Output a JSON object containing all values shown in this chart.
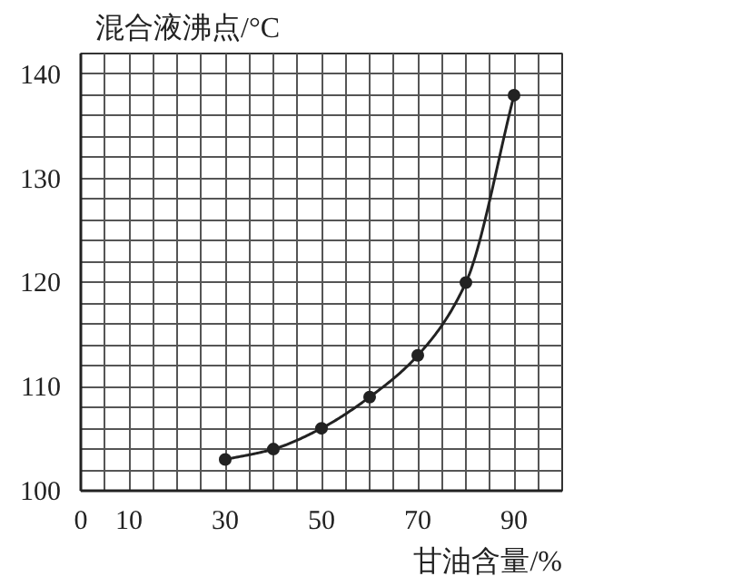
{
  "chart_data": {
    "type": "line",
    "xlabel": "甘油含量/%",
    "ylabel": "混合液沸点/°C",
    "x": [
      30,
      40,
      50,
      60,
      70,
      80,
      90
    ],
    "series": [
      {
        "color": "#222222",
        "values": [
          103,
          104,
          106,
          109,
          113,
          120,
          138
        ]
      }
    ],
    "xlim": [
      0,
      100
    ],
    "ylim": [
      100,
      142
    ],
    "xticks": [
      0,
      {
        "value": 5,
        "label": null
      },
      10,
      {
        "value": 15,
        "label": null
      },
      {
        "value": 20,
        "label": null
      },
      {
        "value": 25,
        "label": null
      },
      30,
      {
        "value": 35,
        "label": null
      },
      {
        "value": 40,
        "label": null
      },
      {
        "value": 45,
        "label": null
      },
      50,
      {
        "value": 55,
        "label": null
      },
      {
        "value": 60,
        "label": null
      },
      {
        "value": 65,
        "label": null
      },
      70,
      {
        "value": 75,
        "label": null
      },
      {
        "value": 80,
        "label": null
      },
      {
        "value": 85,
        "label": null
      },
      90,
      {
        "value": 95,
        "label": null
      },
      {
        "value": 100,
        "label": null
      }
    ],
    "yticks": [
      100,
      {
        "value": 102,
        "label": null
      },
      {
        "value": 104,
        "label": null
      },
      {
        "value": 106,
        "label": null
      },
      {
        "value": 108,
        "label": null
      },
      110,
      {
        "value": 112,
        "label": null
      },
      {
        "value": 114,
        "label": null
      },
      {
        "value": 116,
        "label": null
      },
      {
        "value": 118,
        "label": null
      },
      120,
      {
        "value": 122,
        "label": null
      },
      {
        "value": 124,
        "label": null
      },
      {
        "value": 126,
        "label": null
      },
      {
        "value": 128,
        "label": null
      },
      130,
      {
        "value": 132,
        "label": null
      },
      {
        "value": 134,
        "label": null
      },
      {
        "value": 136,
        "label": null
      },
      {
        "value": 138,
        "label": null
      },
      140,
      {
        "value": 142,
        "label": null
      }
    ],
    "grid": true,
    "marker": "circle",
    "line_style": "solid"
  }
}
